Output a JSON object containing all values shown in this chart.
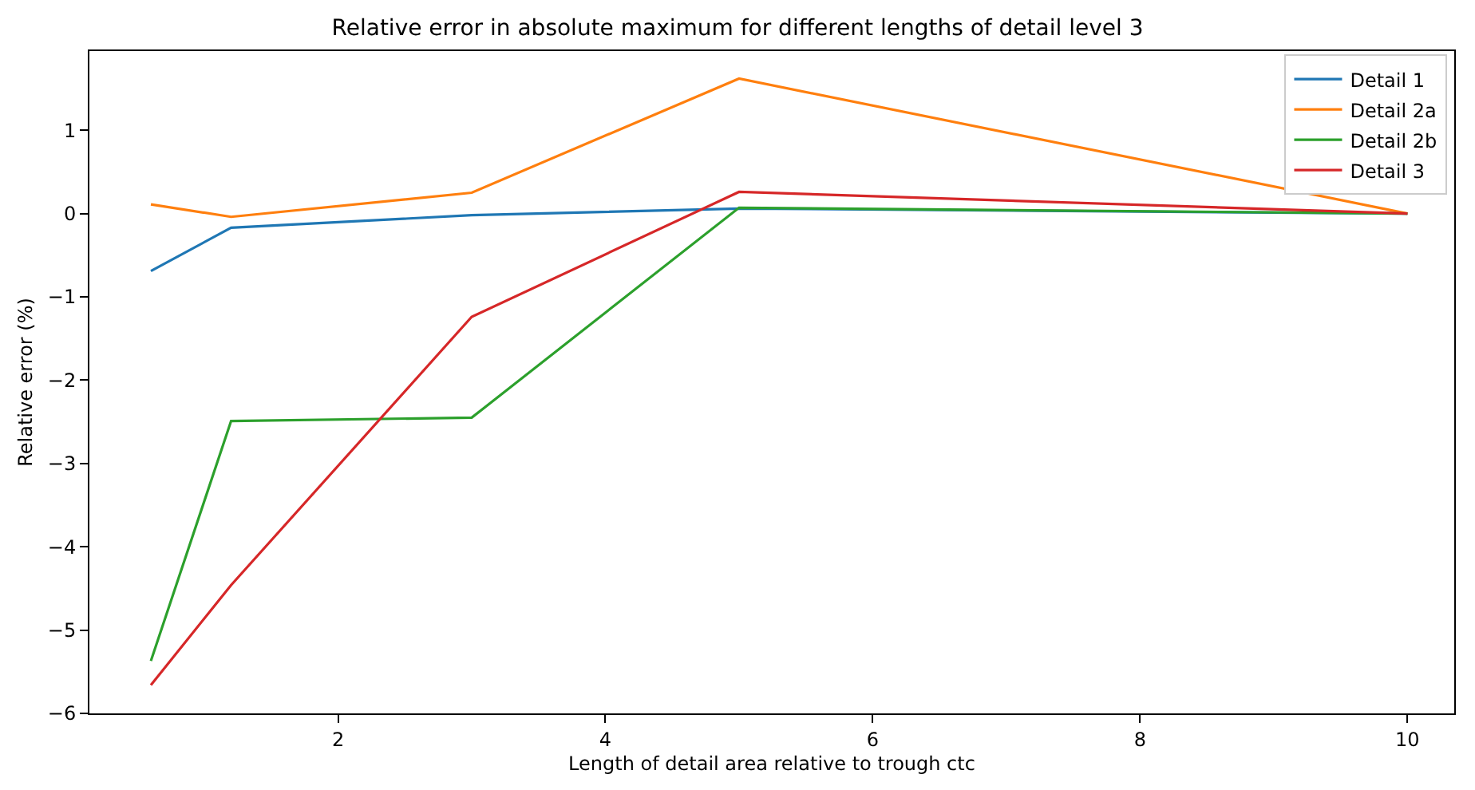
{
  "chart_data": {
    "type": "line",
    "title": "Relative error in absolute maximum for different lengths of detail level 3",
    "xlabel": "Length of detail area relative to trough ctc",
    "ylabel": "Relative error (%)",
    "x": [
      0.6,
      1.2,
      3,
      5,
      10
    ],
    "series": [
      {
        "name": "Detail 1",
        "color": "#1f77b4",
        "values": [
          -0.69,
          -0.17,
          -0.02,
          0.06,
          0
        ]
      },
      {
        "name": "Detail 2a",
        "color": "#ff7f0e",
        "values": [
          0.11,
          -0.04,
          0.25,
          1.62,
          0
        ]
      },
      {
        "name": "Detail 2b",
        "color": "#2ca02c",
        "values": [
          -5.37,
          -2.49,
          -2.45,
          0.07,
          0
        ]
      },
      {
        "name": "Detail 3",
        "color": "#d62728",
        "values": [
          -5.66,
          -4.46,
          -1.24,
          0.26,
          0
        ]
      }
    ],
    "xlim": [
      0.14,
      10.35
    ],
    "ylim": [
      -6.0,
      1.95
    ],
    "xticks": [
      2,
      4,
      6,
      8,
      10
    ],
    "yticks": [
      -6,
      -5,
      -4,
      -3,
      -2,
      -1,
      0,
      1
    ],
    "legend": "top right"
  }
}
